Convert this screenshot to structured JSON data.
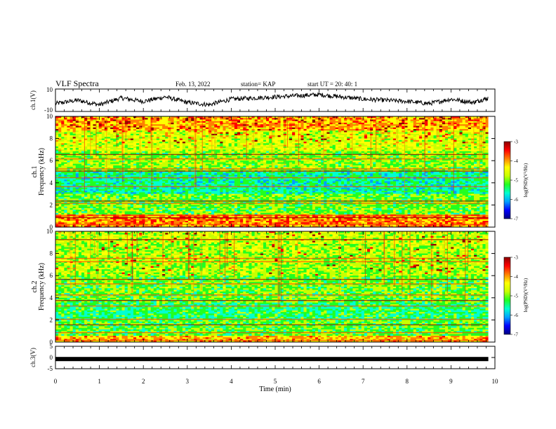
{
  "header": {
    "title": "VLF Spectra",
    "date": "Feb. 13, 2022",
    "station": "station= KAP",
    "start": "start UT =  20: 40: 1"
  },
  "colors": {
    "colormap": [
      "#000080",
      "#0000ff",
      "#00a0ff",
      "#00ffd0",
      "#20ff20",
      "#c8ff00",
      "#ffff00",
      "#ff8000",
      "#ff0000",
      "#8b0000"
    ],
    "trace": "#000000"
  },
  "chart_data": [
    {
      "type": "line",
      "panel": "ch1-waveform",
      "ylabel": "ch.1(V)",
      "ylim": [
        -10,
        10
      ],
      "yticks": [
        "10",
        "-10"
      ],
      "xlim": [
        0,
        10
      ],
      "x": [
        0,
        0.5,
        1,
        1.5,
        2,
        2.5,
        3,
        3.5,
        4,
        4.5,
        5,
        5.5,
        6,
        6.5,
        7,
        7.5,
        8,
        8.5,
        9,
        9.5,
        9.85
      ],
      "y": [
        -3,
        0,
        -4,
        2,
        -1,
        3,
        -2,
        -4,
        1,
        2,
        3,
        4,
        5,
        3,
        1,
        0,
        -1,
        -3,
        1,
        -2,
        2
      ]
    },
    {
      "type": "heatmap",
      "panel": "ch1-spectrogram",
      "ylabel_top": "ch.1",
      "ylabel": "Frequency (kHz)",
      "ylim": [
        0,
        10
      ],
      "yticks": [
        "0",
        "2",
        "4",
        "6",
        "8",
        "10"
      ],
      "xlim": [
        0,
        9.85
      ],
      "colorbar_label": "log(PSD)(V²/Hz)",
      "colorbar_ticks": [
        "-3",
        "-4",
        "-5",
        "-6",
        "-7"
      ],
      "colorbar_range": [
        -7,
        -3
      ]
    },
    {
      "type": "heatmap",
      "panel": "ch2-spectrogram",
      "ylabel_top": "ch.2",
      "ylabel": "Frequency (kHz)",
      "ylim": [
        0,
        10
      ],
      "yticks": [
        "0",
        "2",
        "4",
        "6",
        "8",
        "10"
      ],
      "xlim": [
        0,
        9.85
      ],
      "colorbar_label": "log(PSD)(V²/Hz)",
      "colorbar_ticks": [
        "-3",
        "-4",
        "-5",
        "-6",
        "-7"
      ],
      "colorbar_range": [
        -7,
        -3
      ]
    },
    {
      "type": "line",
      "panel": "ch3-waveform",
      "ylabel": "ch.3(V)",
      "ylim": [
        -5,
        5
      ],
      "yticks": [
        "5",
        "0",
        "-5"
      ],
      "xlim": [
        0,
        10
      ],
      "x": [
        0,
        9.85
      ],
      "y": [
        -0.7,
        -0.7
      ]
    }
  ],
  "xaxis": {
    "label": "Time (min)",
    "ticks": [
      "0",
      "1",
      "2",
      "3",
      "4",
      "5",
      "6",
      "7",
      "8",
      "9",
      "10"
    ]
  }
}
